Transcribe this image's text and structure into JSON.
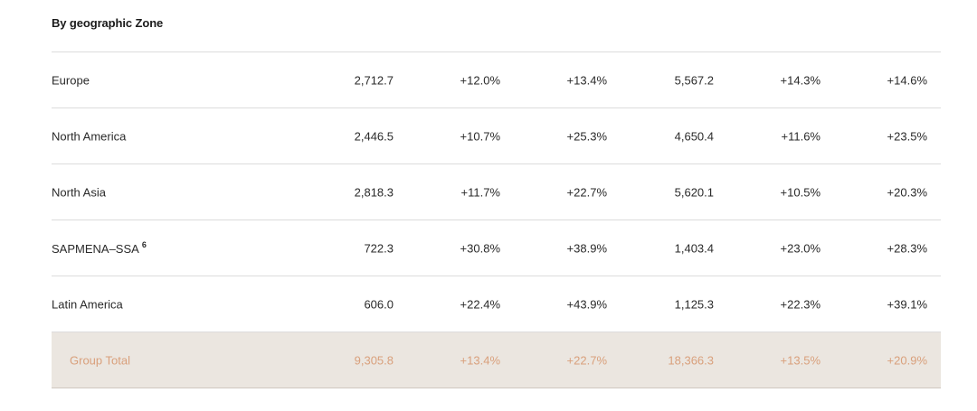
{
  "section": {
    "title": "By geographic Zone"
  },
  "rows": [
    {
      "label": "Europe",
      "footnote": "",
      "values": [
        "2,712.7",
        "+12.0%",
        "+13.4%",
        "5,567.2",
        "+14.3%",
        "+14.6%"
      ]
    },
    {
      "label": "North America",
      "footnote": "",
      "values": [
        "2,446.5",
        "+10.7%",
        "+25.3%",
        "4,650.4",
        "+11.6%",
        "+23.5%"
      ]
    },
    {
      "label": "North Asia",
      "footnote": "",
      "values": [
        "2,818.3",
        "+11.7%",
        "+22.7%",
        "5,620.1",
        "+10.5%",
        "+20.3%"
      ]
    },
    {
      "label": "SAPMENA–SSA",
      "footnote": "6",
      "values": [
        "722.3",
        "+30.8%",
        "+38.9%",
        "1,403.4",
        "+23.0%",
        "+28.3%"
      ]
    },
    {
      "label": "Latin America",
      "footnote": "",
      "values": [
        "606.0",
        "+22.4%",
        "+43.9%",
        "1,125.3",
        "+22.3%",
        "+39.1%"
      ]
    }
  ],
  "total": {
    "label": "Group Total",
    "values": [
      "9,305.8",
      "+13.4%",
      "+22.7%",
      "18,366.3",
      "+13.5%",
      "+20.9%"
    ]
  },
  "colors": {
    "total_text": "#d9a07c",
    "total_background": "#ebe6e0",
    "divider": "#dcdcdc"
  }
}
